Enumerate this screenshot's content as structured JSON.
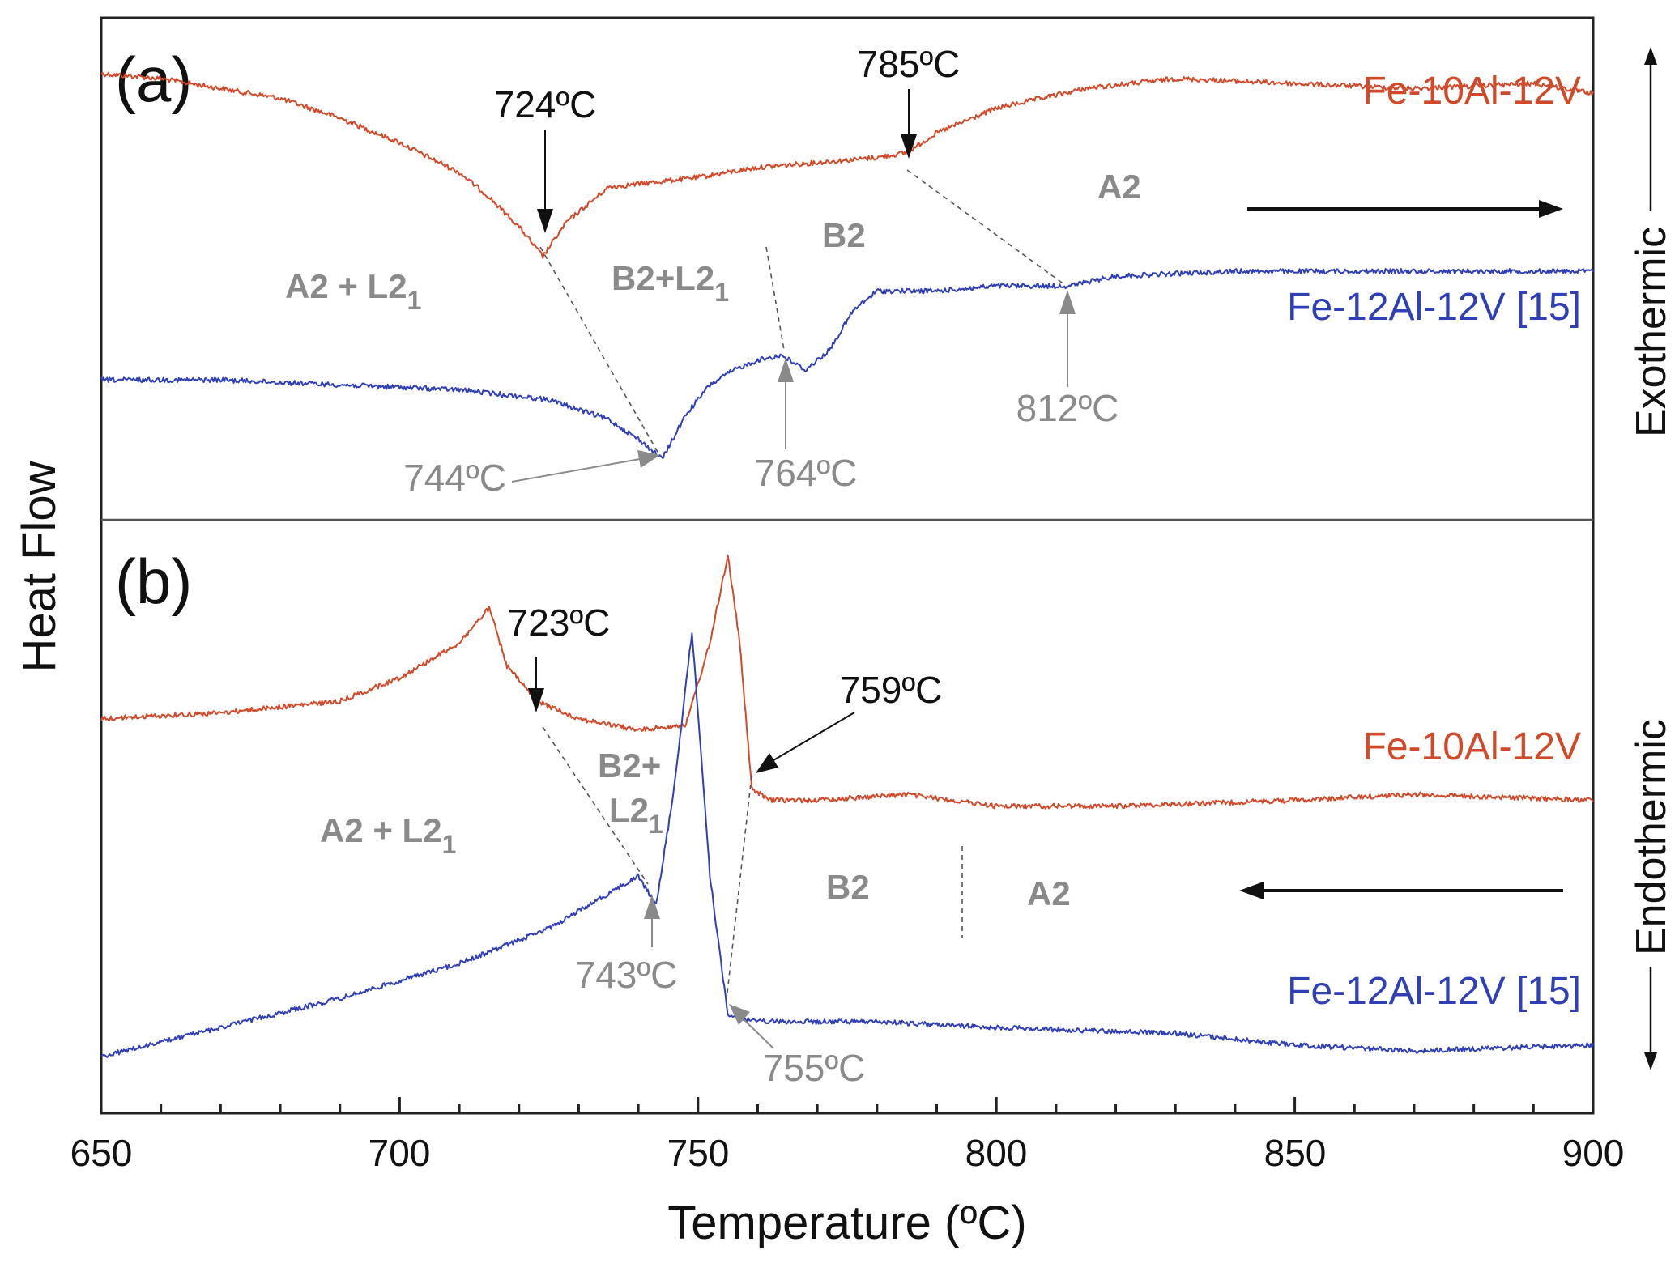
{
  "chart_data": {
    "type": "line",
    "xlabel": "Temperature (ºC)",
    "ylabel": "Heat Flow",
    "xlim": [
      650,
      900
    ],
    "x_ticks": [
      "650",
      "700",
      "750",
      "800",
      "850",
      "900"
    ],
    "y_side_labels": {
      "top": "Exothermic",
      "bottom": "Endothermic"
    },
    "colors": {
      "fe10": "#d04a2a",
      "fe12": "#2f3fb5",
      "annotation_black": "#111111",
      "annotation_gray": "#8a8a8a"
    },
    "panels": [
      {
        "label": "(a)",
        "direction": "heating",
        "series": [
          {
            "name": "Fe-10Al-12V",
            "color": "#d04a2a",
            "x": [
              650,
              660,
              670,
              680,
              690,
              700,
              710,
              715,
              720,
              724,
              728,
              735,
              750,
              760,
              770,
              780,
              785,
              790,
              800,
              815,
              830,
              850,
              870,
              890,
              900
            ],
            "y": [
              0.9,
              0.89,
              0.87,
              0.85,
              0.81,
              0.76,
              0.7,
              0.65,
              0.59,
              0.53,
              0.6,
              0.67,
              0.69,
              0.71,
              0.72,
              0.73,
              0.74,
              0.78,
              0.83,
              0.87,
              0.89,
              0.88,
              0.87,
              0.88,
              0.86
            ]
          },
          {
            "name": "Fe-12Al-12V [15]",
            "color": "#2f3fb5",
            "x": [
              650,
              670,
              690,
              710,
              725,
              735,
              740,
              744,
              748,
              752,
              756,
              760,
              764,
              768,
              772,
              776,
              780,
              790,
              800,
              812,
              820,
              840,
              860,
              880,
              900
            ],
            "y": [
              0.28,
              0.28,
              0.27,
              0.26,
              0.24,
              0.2,
              0.16,
              0.12,
              0.21,
              0.27,
              0.3,
              0.32,
              0.33,
              0.3,
              0.34,
              0.42,
              0.46,
              0.46,
              0.47,
              0.47,
              0.49,
              0.5,
              0.5,
              0.5,
              0.5
            ]
          }
        ],
        "annotations": [
          {
            "text": "724ºC",
            "x": 724,
            "color": "black"
          },
          {
            "text": "785ºC",
            "x": 785,
            "color": "black"
          },
          {
            "text": "744ºC",
            "x": 744,
            "color": "gray"
          },
          {
            "text": "764ºC",
            "x": 764,
            "color": "gray"
          },
          {
            "text": "812ºC",
            "x": 812,
            "color": "gray"
          }
        ],
        "phase_regions": [
          {
            "text": "A2 + L2",
            "subscript": "1"
          },
          {
            "text": "B2+L2",
            "subscript": "1"
          },
          {
            "text": "B2"
          },
          {
            "text": "A2"
          }
        ]
      },
      {
        "label": "(b)",
        "direction": "cooling",
        "series": [
          {
            "name": "Fe-10Al-12V",
            "color": "#d04a2a",
            "x": [
              650,
              670,
              690,
              700,
              710,
              715,
              718,
              723,
              730,
              740,
              748,
              752,
              755,
              757,
              759,
              762,
              770,
              785,
              800,
              820,
              850,
              870,
              900
            ],
            "y": [
              0.67,
              0.68,
              0.7,
              0.74,
              0.8,
              0.86,
              0.76,
              0.7,
              0.67,
              0.65,
              0.66,
              0.8,
              0.95,
              0.8,
              0.55,
              0.53,
              0.53,
              0.54,
              0.52,
              0.52,
              0.53,
              0.54,
              0.53
            ]
          },
          {
            "name": "Fe-12Al-12V [15]",
            "color": "#2f3fb5",
            "x": [
              650,
              670,
              690,
              710,
              725,
              735,
              740,
              743,
              746,
              749,
              752,
              755,
              760,
              780,
              800,
              830,
              850,
              870,
              900
            ],
            "y": [
              0.09,
              0.14,
              0.19,
              0.25,
              0.31,
              0.37,
              0.4,
              0.35,
              0.55,
              0.82,
              0.4,
              0.16,
              0.15,
              0.15,
              0.14,
              0.13,
              0.11,
              0.1,
              0.11
            ]
          }
        ],
        "annotations": [
          {
            "text": "723ºC",
            "x": 723,
            "color": "black"
          },
          {
            "text": "759ºC",
            "x": 759,
            "color": "black"
          },
          {
            "text": "743ºC",
            "x": 743,
            "color": "gray"
          },
          {
            "text": "755ºC",
            "x": 755,
            "color": "gray"
          }
        ],
        "phase_regions": [
          {
            "text": "A2 + L2",
            "subscript": "1"
          },
          {
            "text": "B2+"
          },
          {
            "text": "L2",
            "subscript": "1"
          },
          {
            "text": "B2"
          },
          {
            "text": "A2"
          }
        ]
      }
    ]
  }
}
